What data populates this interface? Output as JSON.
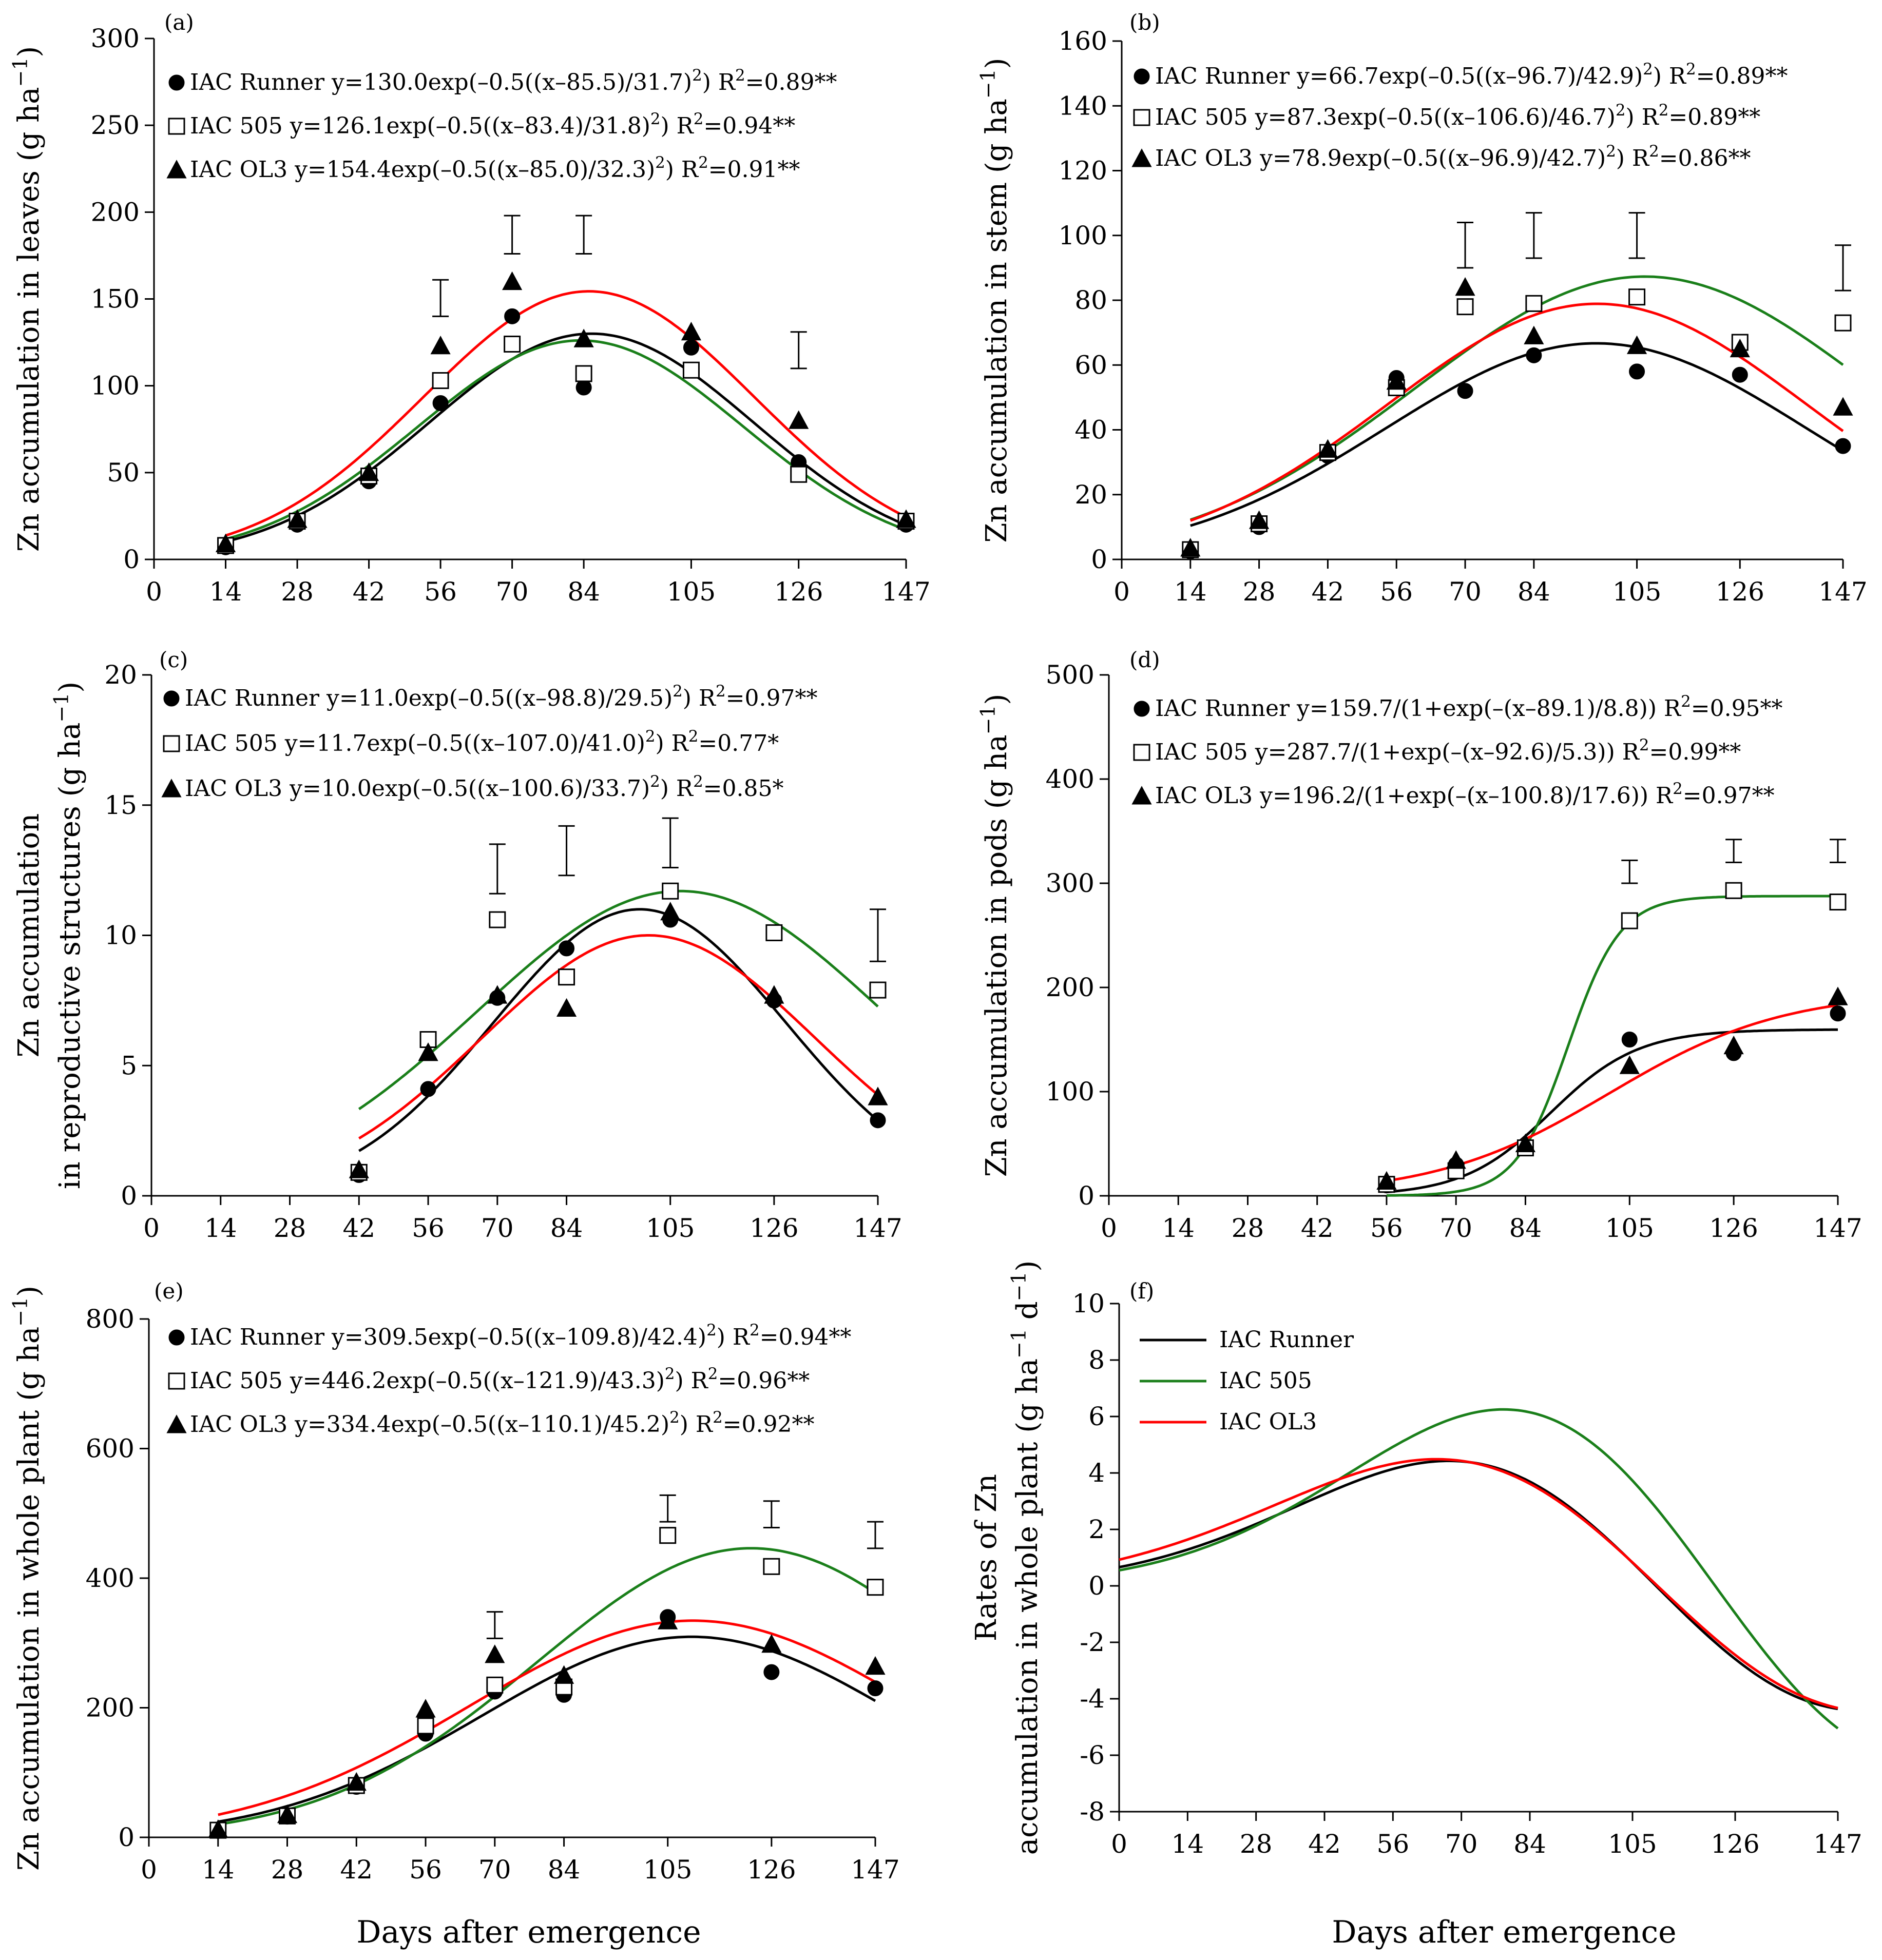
{
  "colors": {
    "IAC Runner": "#000000",
    "IAC 505": "#1a7f1a",
    "IAC OL3": "#ff0000"
  },
  "figure": {
    "xlabel": "Days after emergence"
  },
  "chart_data": [
    {
      "id": "a",
      "label": "(a)",
      "type": "scatter+line",
      "ylabel": "Zn accumulation in leaves (g ha⁻¹)",
      "ylim": [
        0,
        300
      ],
      "yticks": [
        0,
        50,
        100,
        150,
        200,
        250,
        300
      ],
      "xticks": [
        0,
        14,
        28,
        42,
        56,
        70,
        84,
        105,
        126,
        147
      ],
      "legend": [
        {
          "series": "IAC Runner",
          "marker": "circle",
          "text": "IAC Runner y=130.0exp(–0.5((x–85.5)/31.7)²) R²=0.89**"
        },
        {
          "series": "IAC 505",
          "marker": "square",
          "text": "IAC 505 y=126.1exp(–0.5((x–83.4)/31.8)²) R²=0.94**"
        },
        {
          "series": "IAC OL3",
          "marker": "triangle",
          "text": "IAC OL3 y=154.4exp(–0.5((x–85.0)/32.3)²) R²=0.91**"
        }
      ],
      "fits": [
        {
          "series": "IAC Runner",
          "kind": "gauss",
          "a": 130.0,
          "b": 85.5,
          "c": 31.7,
          "xrange": [
            14,
            147
          ]
        },
        {
          "series": "IAC 505",
          "kind": "gauss",
          "a": 126.1,
          "b": 83.4,
          "c": 31.8,
          "xrange": [
            14,
            147
          ]
        },
        {
          "series": "IAC OL3",
          "kind": "gauss",
          "a": 154.4,
          "b": 85.0,
          "c": 32.3,
          "xrange": [
            14,
            147
          ]
        }
      ],
      "points": [
        {
          "series": "IAC Runner",
          "marker": "circle",
          "x": [
            14,
            28,
            42,
            56,
            70,
            84,
            105,
            126,
            147
          ],
          "y": [
            7,
            20,
            45,
            90,
            140,
            99,
            122,
            56,
            20
          ]
        },
        {
          "series": "IAC 505",
          "marker": "square",
          "x": [
            14,
            28,
            42,
            56,
            70,
            84,
            105,
            126,
            147
          ],
          "y": [
            8,
            22,
            48,
            103,
            124,
            107,
            109,
            49,
            22
          ]
        },
        {
          "series": "IAC OL3",
          "marker": "triangle",
          "x": [
            14,
            28,
            42,
            56,
            70,
            84,
            105,
            126,
            147
          ],
          "y": [
            9,
            23,
            50,
            123,
            160,
            127,
            131,
            80,
            23
          ]
        }
      ],
      "errorbars": [
        {
          "x": 56,
          "lo": 140,
          "hi": 161
        },
        {
          "x": 70,
          "lo": 176,
          "hi": 198
        },
        {
          "x": 84,
          "lo": 176,
          "hi": 198
        },
        {
          "x": 126,
          "lo": 110,
          "hi": 131
        }
      ]
    },
    {
      "id": "b",
      "label": "(b)",
      "type": "scatter+line",
      "ylabel": "Zn accumulation in stem (g ha⁻¹)",
      "ylim": [
        0,
        160
      ],
      "yticks": [
        0,
        20,
        40,
        60,
        80,
        100,
        120,
        140,
        160
      ],
      "xticks": [
        0,
        14,
        28,
        42,
        56,
        70,
        84,
        105,
        126,
        147
      ],
      "legend": [
        {
          "series": "IAC Runner",
          "marker": "circle",
          "text": "IAC Runner y=66.7exp(–0.5((x–96.7)/42.9)²) R²=0.89**"
        },
        {
          "series": "IAC 505",
          "marker": "square",
          "text": "IAC 505 y=87.3exp(–0.5((x–106.6)/46.7)²) R²=0.89**"
        },
        {
          "series": "IAC OL3",
          "marker": "triangle",
          "text": "IAC OL3 y=78.9exp(–0.5((x–96.9)/42.7)²) R²=0.86**"
        }
      ],
      "fits": [
        {
          "series": "IAC Runner",
          "kind": "gauss",
          "a": 66.7,
          "b": 96.7,
          "c": 42.9,
          "xrange": [
            14,
            147
          ]
        },
        {
          "series": "IAC 505",
          "kind": "gauss",
          "a": 87.3,
          "b": 106.6,
          "c": 46.7,
          "xrange": [
            14,
            147
          ]
        },
        {
          "series": "IAC OL3",
          "kind": "gauss",
          "a": 78.9,
          "b": 96.9,
          "c": 42.7,
          "xrange": [
            14,
            147
          ]
        }
      ],
      "points": [
        {
          "series": "IAC Runner",
          "marker": "circle",
          "x": [
            14,
            28,
            42,
            56,
            70,
            84,
            105,
            126,
            147
          ],
          "y": [
            2.5,
            10,
            32,
            56,
            52,
            63,
            58,
            57,
            35
          ]
        },
        {
          "series": "IAC 505",
          "marker": "square",
          "x": [
            14,
            28,
            42,
            56,
            70,
            84,
            105,
            126,
            147
          ],
          "y": [
            3,
            11,
            33,
            53,
            78,
            79,
            81,
            67,
            73
          ]
        },
        {
          "series": "IAC OL3",
          "marker": "triangle",
          "x": [
            14,
            28,
            42,
            56,
            70,
            84,
            105,
            126,
            147
          ],
          "y": [
            3.5,
            12,
            34,
            55,
            84,
            69,
            66,
            65,
            47
          ]
        }
      ],
      "errorbars": [
        {
          "x": 70,
          "lo": 90,
          "hi": 104
        },
        {
          "x": 84,
          "lo": 93,
          "hi": 107
        },
        {
          "x": 105,
          "lo": 93,
          "hi": 107
        },
        {
          "x": 147,
          "lo": 83,
          "hi": 97
        }
      ]
    },
    {
      "id": "c",
      "label": "(c)",
      "type": "scatter+line",
      "ylabel": "Zn accumulation in reproductive structures (g ha⁻¹)",
      "ylabel_lines": [
        "Zn accumulation",
        "in reproductive structures (g ha⁻¹)"
      ],
      "ylim": [
        0,
        20
      ],
      "yticks": [
        0,
        5,
        10,
        15,
        20
      ],
      "xticks": [
        0,
        14,
        28,
        42,
        56,
        70,
        84,
        105,
        126,
        147
      ],
      "legend": [
        {
          "series": "IAC Runner",
          "marker": "circle",
          "text": "IAC Runner y=11.0exp(–0.5((x–98.8)/29.5)²) R²=0.97**"
        },
        {
          "series": "IAC 505",
          "marker": "square",
          "text": "IAC 505 y=11.7exp(–0.5((x–107.0)/41.0)²) R²=0.77*"
        },
        {
          "series": "IAC OL3",
          "marker": "triangle",
          "text": "IAC OL3 y=10.0exp(–0.5((x–100.6)/33.7)²) R²=0.85*"
        }
      ],
      "fits": [
        {
          "series": "IAC Runner",
          "kind": "gauss",
          "a": 11.0,
          "b": 98.8,
          "c": 29.5,
          "xrange": [
            42,
            147
          ]
        },
        {
          "series": "IAC 505",
          "kind": "gauss",
          "a": 11.7,
          "b": 107.0,
          "c": 41.0,
          "xrange": [
            42,
            147
          ]
        },
        {
          "series": "IAC OL3",
          "kind": "gauss",
          "a": 10.0,
          "b": 100.6,
          "c": 33.7,
          "xrange": [
            42,
            147
          ]
        }
      ],
      "points": [
        {
          "series": "IAC Runner",
          "marker": "circle",
          "x": [
            42,
            56,
            70,
            84,
            105,
            126,
            147
          ],
          "y": [
            0.8,
            4.1,
            7.6,
            9.5,
            10.6,
            7.5,
            2.9
          ]
        },
        {
          "series": "IAC 505",
          "marker": "square",
          "x": [
            42,
            56,
            70,
            84,
            105,
            126,
            147
          ],
          "y": [
            0.9,
            6.0,
            10.6,
            8.4,
            11.7,
            10.1,
            7.9
          ]
        },
        {
          "series": "IAC OL3",
          "marker": "triangle",
          "x": [
            42,
            56,
            70,
            84,
            105,
            126,
            147
          ],
          "y": [
            1.0,
            5.5,
            7.7,
            7.2,
            10.9,
            7.7,
            3.8
          ]
        }
      ],
      "errorbars": [
        {
          "x": 70,
          "lo": 11.6,
          "hi": 13.5
        },
        {
          "x": 84,
          "lo": 12.3,
          "hi": 14.2
        },
        {
          "x": 105,
          "lo": 12.6,
          "hi": 14.5
        },
        {
          "x": 147,
          "lo": 9.0,
          "hi": 11.0
        }
      ]
    },
    {
      "id": "d",
      "label": "(d)",
      "type": "scatter+line",
      "ylabel": "Zn accumulation in pods (g ha⁻¹)",
      "ylim": [
        0,
        500
      ],
      "yticks": [
        0,
        100,
        200,
        300,
        400,
        500
      ],
      "xticks": [
        0,
        14,
        28,
        42,
        56,
        70,
        84,
        105,
        126,
        147
      ],
      "legend": [
        {
          "series": "IAC Runner",
          "marker": "circle",
          "text": "IAC Runner y=159.7/(1+exp(–(x–89.1)/8.8)) R²=0.95**"
        },
        {
          "series": "IAC 505",
          "marker": "square",
          "text": "IAC 505 y=287.7/(1+exp(–(x–92.6)/5.3)) R²=0.99**"
        },
        {
          "series": "IAC OL3",
          "marker": "triangle",
          "text": "IAC OL3 y=196.2/(1+exp(–(x–100.8)/17.6)) R²=0.97**"
        }
      ],
      "fits": [
        {
          "series": "IAC Runner",
          "kind": "logistic",
          "a": 159.7,
          "b": 89.1,
          "c": 8.8,
          "xrange": [
            56,
            147
          ]
        },
        {
          "series": "IAC 505",
          "kind": "logistic",
          "a": 287.7,
          "b": 92.6,
          "c": 5.3,
          "xrange": [
            56,
            147
          ]
        },
        {
          "series": "IAC OL3",
          "kind": "logistic",
          "a": 196.2,
          "b": 100.8,
          "c": 17.6,
          "xrange": [
            56,
            147
          ]
        }
      ],
      "points": [
        {
          "series": "IAC Runner",
          "marker": "circle",
          "x": [
            56,
            70,
            84,
            105,
            126,
            147
          ],
          "y": [
            10,
            30,
            47,
            150,
            137,
            175
          ]
        },
        {
          "series": "IAC 505",
          "marker": "square",
          "x": [
            56,
            70,
            84,
            105,
            126,
            147
          ],
          "y": [
            11,
            24,
            46,
            264,
            293,
            282
          ]
        },
        {
          "series": "IAC OL3",
          "marker": "triangle",
          "x": [
            56,
            70,
            84,
            105,
            126,
            147
          ],
          "y": [
            14,
            34,
            50,
            125,
            144,
            191
          ]
        }
      ],
      "errorbars": [
        {
          "x": 105,
          "lo": 300,
          "hi": 322
        },
        {
          "x": 126,
          "lo": 320,
          "hi": 342
        },
        {
          "x": 147,
          "lo": 320,
          "hi": 342
        }
      ]
    },
    {
      "id": "e",
      "label": "(e)",
      "type": "scatter+line",
      "ylabel": "Zn accumulation in whole plant (g ha⁻¹)",
      "ylim": [
        0,
        800
      ],
      "yticks": [
        0,
        200,
        400,
        600,
        800
      ],
      "xticks": [
        0,
        14,
        28,
        42,
        56,
        70,
        84,
        105,
        126,
        147
      ],
      "legend": [
        {
          "series": "IAC Runner",
          "marker": "circle",
          "text": "IAC Runner y=309.5exp(–0.5((x–109.8)/42.4)²) R²=0.94**"
        },
        {
          "series": "IAC 505",
          "marker": "square",
          "text": "IAC 505 y=446.2exp(–0.5((x–121.9)/43.3)²) R²=0.96**"
        },
        {
          "series": "IAC OL3",
          "marker": "triangle",
          "text": "IAC OL3 y=334.4exp(–0.5((x–110.1)/45.2)²) R²=0.92**"
        }
      ],
      "fits": [
        {
          "series": "IAC Runner",
          "kind": "gauss",
          "a": 309.5,
          "b": 109.8,
          "c": 42.4,
          "xrange": [
            14,
            147
          ]
        },
        {
          "series": "IAC 505",
          "kind": "gauss",
          "a": 446.2,
          "b": 121.9,
          "c": 43.3,
          "xrange": [
            14,
            147
          ]
        },
        {
          "series": "IAC OL3",
          "kind": "gauss",
          "a": 334.4,
          "b": 110.1,
          "c": 45.2,
          "xrange": [
            14,
            147
          ]
        }
      ],
      "points": [
        {
          "series": "IAC Runner",
          "marker": "circle",
          "x": [
            14,
            28,
            42,
            56,
            70,
            84,
            105,
            126,
            147
          ],
          "y": [
            10,
            32,
            78,
            160,
            225,
            220,
            340,
            255,
            230
          ]
        },
        {
          "series": "IAC 505",
          "marker": "square",
          "x": [
            14,
            28,
            42,
            56,
            70,
            84,
            105,
            126,
            147
          ],
          "y": [
            11,
            33,
            80,
            172,
            235,
            232,
            466,
            418,
            386
          ]
        },
        {
          "series": "IAC OL3",
          "marker": "triangle",
          "x": [
            14,
            28,
            42,
            56,
            70,
            84,
            105,
            126,
            147
          ],
          "y": [
            12,
            35,
            85,
            198,
            282,
            250,
            334,
            298,
            264
          ]
        }
      ],
      "errorbars": [
        {
          "x": 70,
          "lo": 307,
          "hi": 348
        },
        {
          "x": 105,
          "lo": 487,
          "hi": 528
        },
        {
          "x": 126,
          "lo": 478,
          "hi": 519
        },
        {
          "x": 147,
          "lo": 446,
          "hi": 487
        }
      ]
    },
    {
      "id": "f",
      "label": "(f)",
      "type": "line",
      "ylabel": "Rates of Zn accumulation in whole plant (g ha⁻¹ d⁻¹)",
      "ylabel_lines": [
        "Rates of Zn",
        "accumulation in whole plant (g ha⁻¹ d⁻¹)"
      ],
      "ylim": [
        -8,
        10
      ],
      "yticks": [
        -8,
        -6,
        -4,
        -2,
        0,
        2,
        4,
        6,
        8,
        10
      ],
      "xticks": [
        0,
        14,
        28,
        42,
        56,
        70,
        84,
        105,
        126,
        147
      ],
      "legend": [
        {
          "series": "IAC Runner",
          "marker": "line",
          "text": "IAC Runner"
        },
        {
          "series": "IAC 505",
          "marker": "line",
          "text": "IAC 505"
        },
        {
          "series": "IAC OL3",
          "marker": "line",
          "text": "IAC OL3"
        }
      ],
      "fits": [
        {
          "series": "IAC Runner",
          "kind": "gaussderiv",
          "a": 309.5,
          "b": 109.8,
          "c": 42.4,
          "xrange": [
            0,
            147
          ]
        },
        {
          "series": "IAC 505",
          "kind": "gaussderiv",
          "a": 446.2,
          "b": 121.9,
          "c": 43.3,
          "xrange": [
            0,
            147
          ]
        },
        {
          "series": "IAC OL3",
          "kind": "gaussderiv",
          "a": 334.4,
          "b": 110.1,
          "c": 45.2,
          "xrange": [
            0,
            147
          ]
        }
      ],
      "points": [],
      "errorbars": []
    }
  ]
}
